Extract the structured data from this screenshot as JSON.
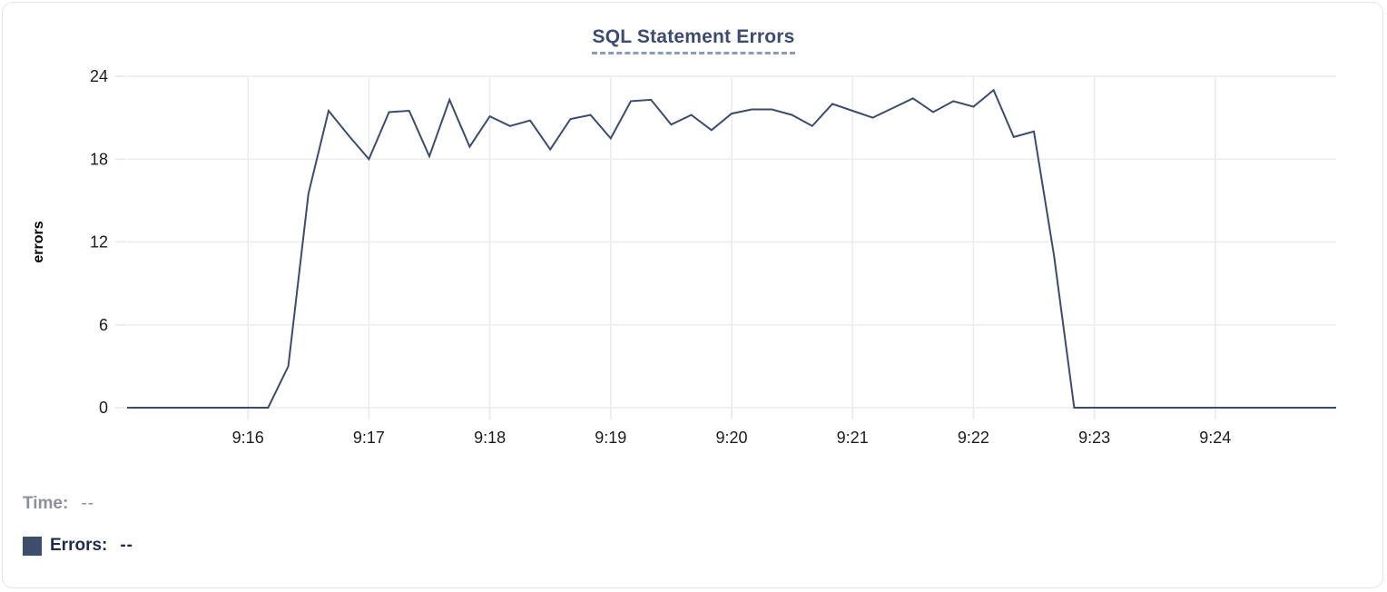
{
  "chart": {
    "title": "SQL Statement Errors",
    "y_axis_label": "errors"
  },
  "legend": {
    "time_label": "Time:",
    "time_value": "--",
    "errors_label": "Errors:",
    "errors_value": "--"
  },
  "colors": {
    "series_line": "#3d4c6b",
    "legend_swatch": "#3d4d6b",
    "title_text": "#3c4b6e",
    "title_underline": "#8e9bbd",
    "grid_line": "#ececec",
    "tick_text": "#1c1c1e",
    "axis_label_text": "#000000",
    "time_legend_text": "#8b9099",
    "errors_legend_text": "#1f2b4d",
    "card_border": "#e3e4e6"
  },
  "chart_data": {
    "type": "line",
    "title": "SQL Statement Errors",
    "xlabel": "",
    "ylabel": "errors",
    "ylim": [
      0,
      24
    ],
    "yticks": [
      0,
      6,
      12,
      18,
      24
    ],
    "x_domain": [
      "9:15:00",
      "9:25:00"
    ],
    "xtick_labels": [
      "9:16",
      "9:17",
      "9:18",
      "9:19",
      "9:20",
      "9:21",
      "9:22",
      "9:23",
      "9:24"
    ],
    "grid": true,
    "legend_position": "bottom-left",
    "series": [
      {
        "name": "Errors",
        "color": "#3d4c6b",
        "start_time": "9:15:00",
        "interval_seconds": 10,
        "values": [
          0,
          0,
          0,
          0,
          0,
          0,
          0,
          0,
          3,
          15.5,
          21.5,
          19.7,
          18,
          21.4,
          21.5,
          18.2,
          22.3,
          18.9,
          21.1,
          20.4,
          20.8,
          18.7,
          20.9,
          21.2,
          19.5,
          22.2,
          22.3,
          20.5,
          21.2,
          20.1,
          21.3,
          21.6,
          21.6,
          21.2,
          20.4,
          22.0,
          21.5,
          21.0,
          21.7,
          22.4,
          21.4,
          22.2,
          21.8,
          23.0,
          19.6,
          20.0,
          11,
          0,
          0,
          0,
          0,
          0,
          0,
          0,
          0,
          0,
          0,
          0,
          0,
          0,
          0
        ]
      }
    ]
  }
}
